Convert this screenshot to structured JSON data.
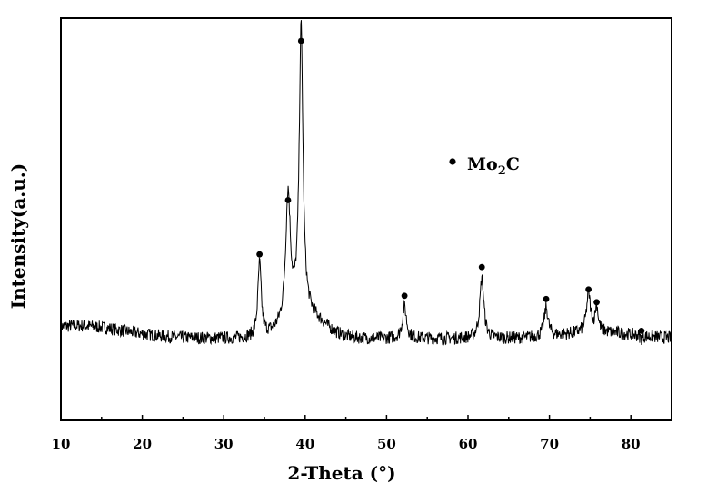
{
  "chart_data": {
    "type": "line",
    "title": "",
    "xlabel": "2-Theta (°)",
    "ylabel": "Intensity(a.u.)",
    "xlim": [
      10,
      85
    ],
    "x_ticks": [
      10,
      20,
      30,
      40,
      50,
      60,
      70,
      80
    ],
    "y_ticks_shown": false,
    "grid": false,
    "legend": {
      "placement": "upper-middle-right",
      "entries": [
        {
          "marker": "dot",
          "text_main": "Mo",
          "text_sub": "2",
          "text_tail": "C"
        }
      ]
    },
    "baseline_intensity": 0.1,
    "peaks": [
      {
        "two_theta": 34.4,
        "intensity": 0.33,
        "marked": true
      },
      {
        "two_theta": 37.9,
        "intensity": 0.5,
        "marked": true
      },
      {
        "two_theta": 39.5,
        "intensity": 1.0,
        "marked": true
      },
      {
        "two_theta": 52.2,
        "intensity": 0.2,
        "marked": true
      },
      {
        "two_theta": 61.7,
        "intensity": 0.29,
        "marked": true
      },
      {
        "two_theta": 69.6,
        "intensity": 0.19,
        "marked": true
      },
      {
        "two_theta": 74.8,
        "intensity": 0.22,
        "marked": true
      },
      {
        "two_theta": 75.8,
        "intensity": 0.18,
        "marked": true
      },
      {
        "two_theta": 81.3,
        "intensity": 0.09,
        "marked": true
      }
    ],
    "series": [
      {
        "values_description_only_in_peaks": true
      }
    ]
  }
}
